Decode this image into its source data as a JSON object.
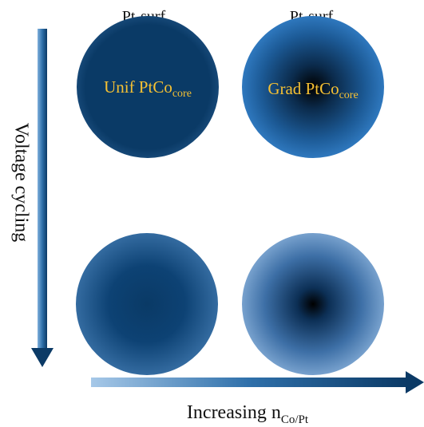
{
  "top_labels": {
    "left": "Pt-surf",
    "right": "Pt-surf"
  },
  "core_labels": {
    "left_main": "Unif PtCo",
    "left_sub": "core",
    "right_main": "Grad PtCo",
    "right_sub": "core"
  },
  "axes": {
    "vertical": "Voltage cycling",
    "horizontal_main": "Increasing n",
    "horizontal_sub": "Co/Pt"
  },
  "colors": {
    "core_label": "#f5c033",
    "dark_navy": "#0a3a66",
    "bright_blue": "#3a8ad6",
    "pale_blue": "#d4e4f5",
    "black_core": "#000000"
  }
}
